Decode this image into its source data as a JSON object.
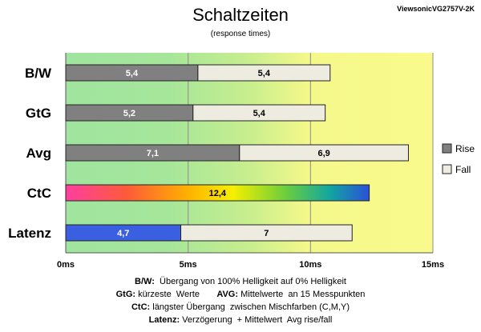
{
  "header": {
    "model": "ViewsonicVG2757V-2K",
    "title": "Schaltzeiten",
    "subtitle": "(response times)"
  },
  "colors": {
    "rise": "#808080",
    "fall": "#eeebe0",
    "latenz_rise": "#3a5fe0",
    "bg_fast": "#9fe49f",
    "bg_mid": "#d8f08a",
    "bg_slow": "#f9f98a"
  },
  "chart_data": {
    "type": "bar",
    "orientation": "horizontal",
    "stacked": true,
    "categories": [
      "B/W",
      "GtG",
      "Avg",
      "CtC",
      "Latenz"
    ],
    "series": [
      {
        "name": "Rise",
        "values": [
          5.4,
          5.2,
          7.1,
          12.4,
          4.7
        ]
      },
      {
        "name": "Fall",
        "values": [
          5.4,
          5.4,
          6.9,
          null,
          7
        ]
      }
    ],
    "value_labels": {
      "rise": [
        "5,4",
        "5,2",
        "7,1",
        "12,4",
        "4,7"
      ],
      "fall": [
        "5,4",
        "5,4",
        "6,9",
        "",
        "7"
      ]
    },
    "xlim": [
      0,
      15
    ],
    "xticks": [
      0,
      5,
      10,
      15
    ],
    "xtick_labels": [
      "0ms",
      "5ms",
      "10ms",
      "15ms"
    ],
    "grid": true,
    "legend_position": "right"
  },
  "legend": {
    "rise": "Rise",
    "fall": "Fall"
  },
  "footnotes": [
    {
      "key": "B/W:",
      "text": "  Übergang von 100% Helligkeit auf 0% Helligkeit"
    },
    {
      "key": "GtG:",
      "text": " kürzeste  Werte       ",
      "key2": "AVG:",
      "text2": " Mittelwerte  an 15 Messpunkten"
    },
    {
      "key": "CtC:",
      "text": " längster Übergang  zwischen Mischfarben (C,M,Y)"
    },
    {
      "key": "Latenz:",
      "text": " Verzögerung  + Mittelwert  Avg rise/fall"
    }
  ]
}
